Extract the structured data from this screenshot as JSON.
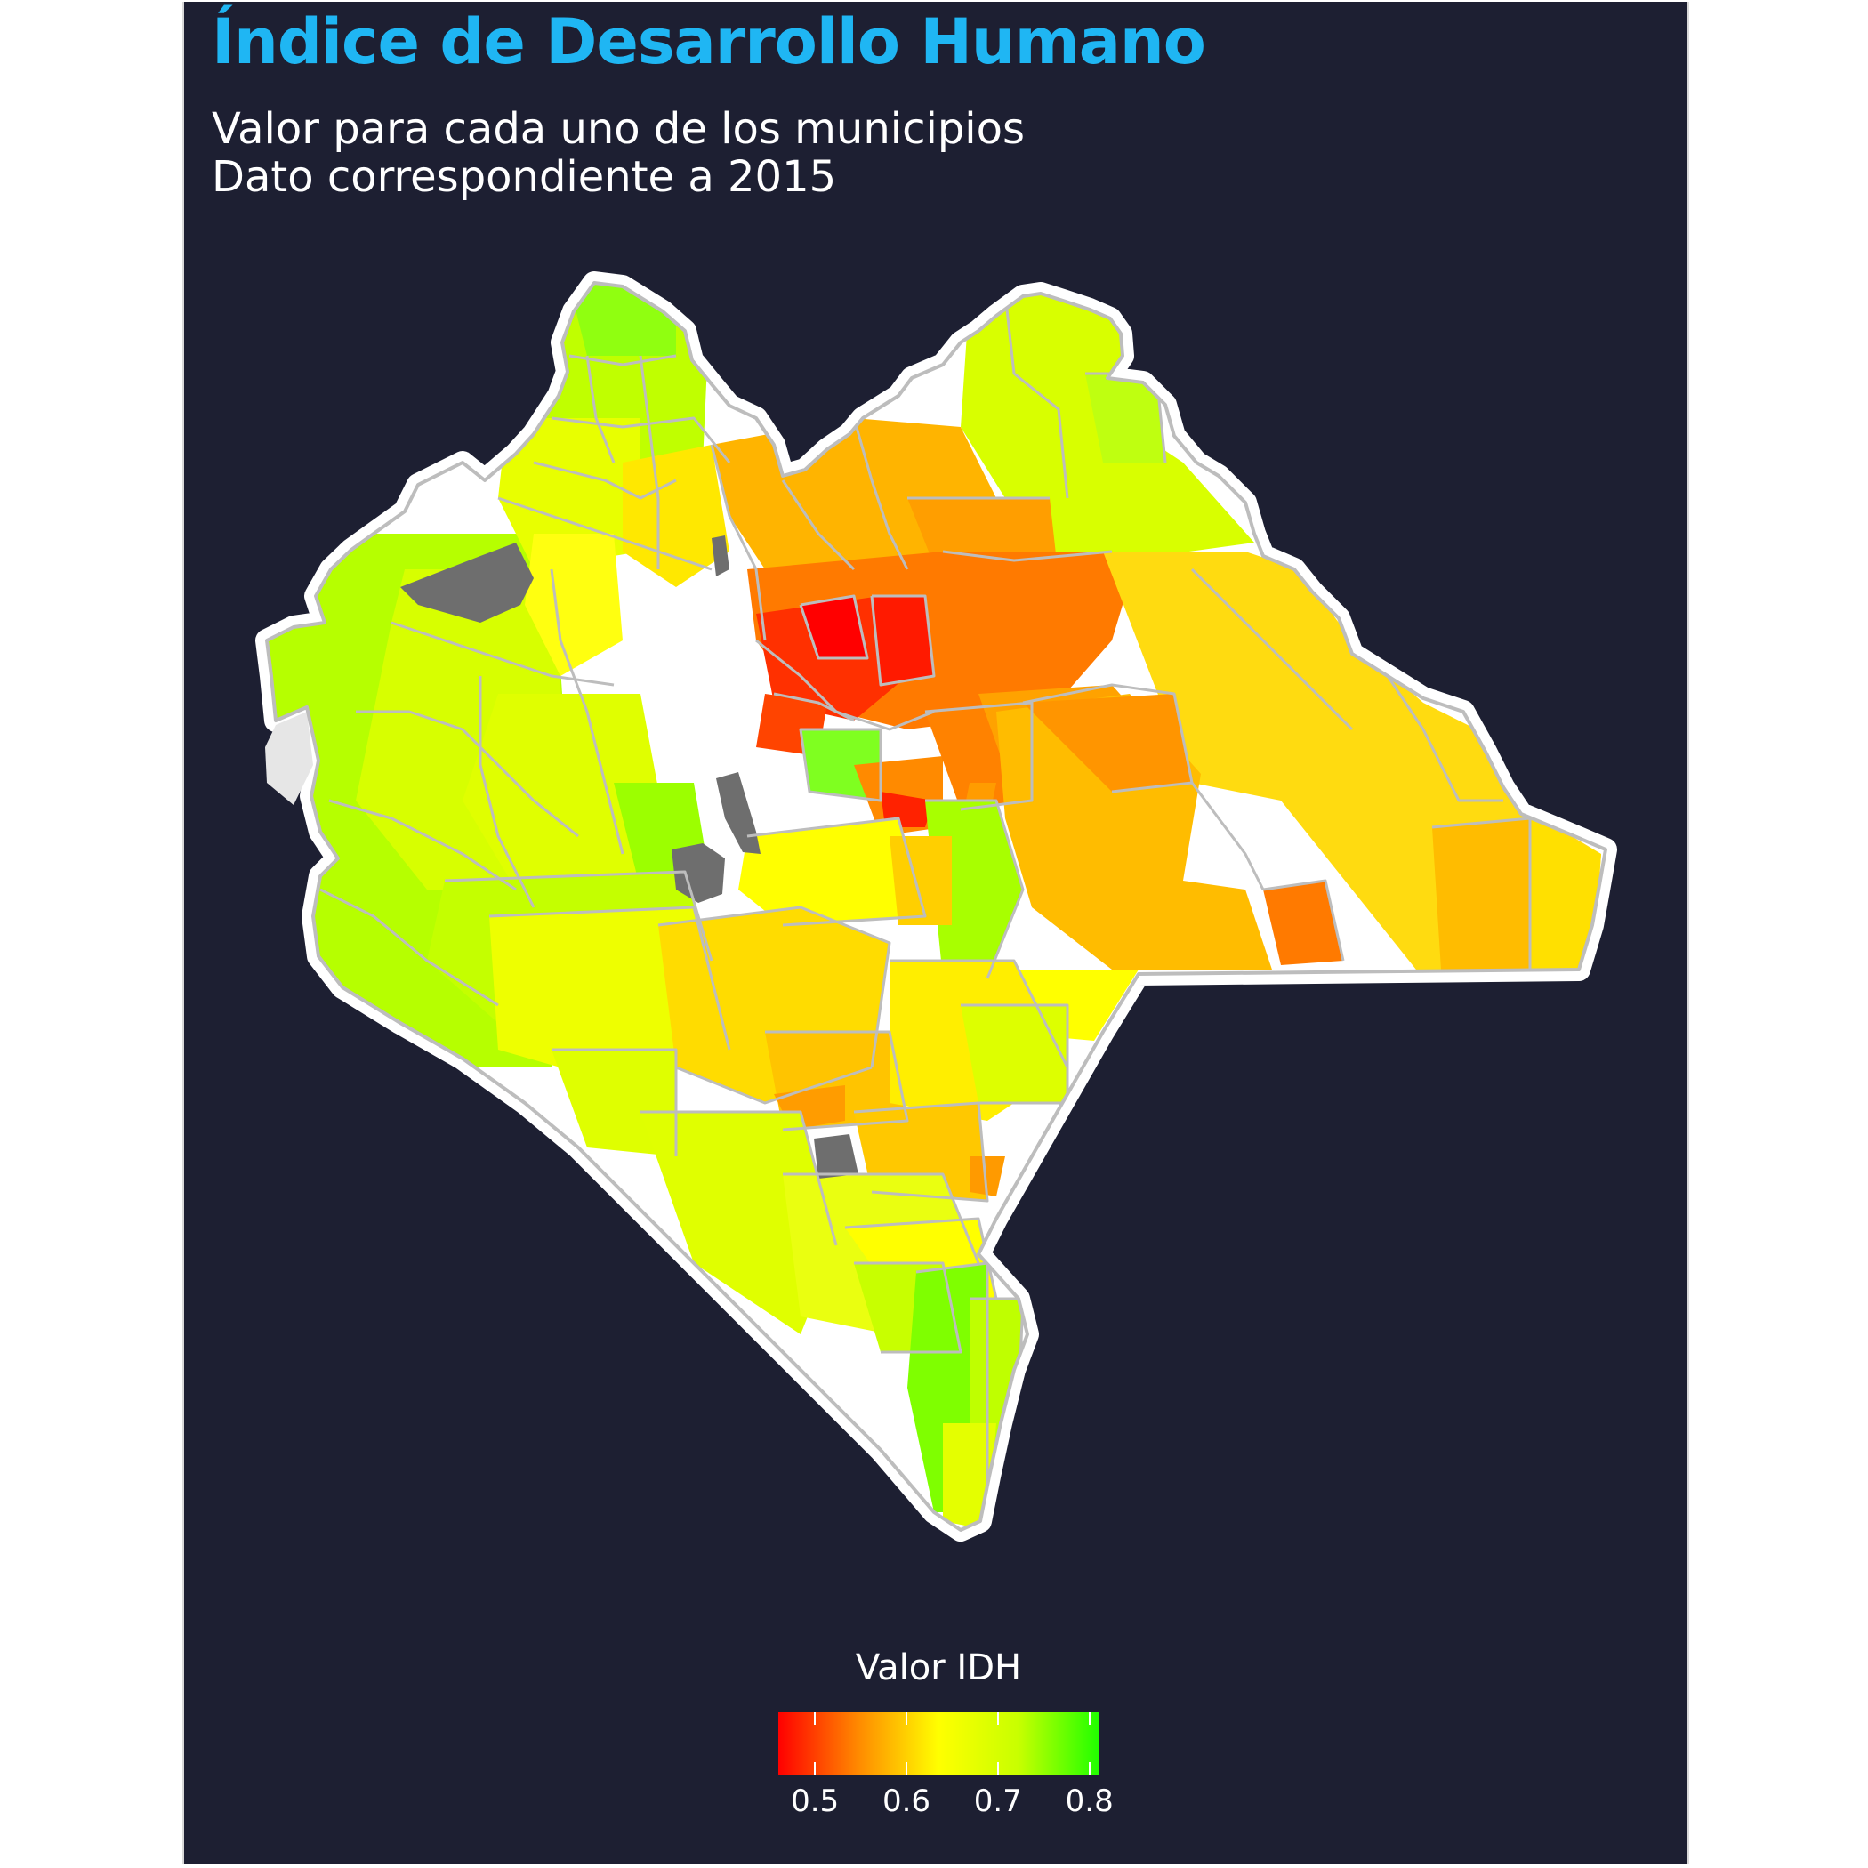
{
  "title": "Índice de Desarrollo Humano",
  "subtitle_line1": "Valor para cada uno de los municipios",
  "subtitle_line2": "Dato correspondiente a 2015",
  "legend": {
    "title": "Valor IDH",
    "min": 0.46,
    "max": 0.81,
    "ticks": [
      "0.5",
      "0.6",
      "0.7",
      "0.8"
    ],
    "tick_values": [
      0.5,
      0.6,
      0.7,
      0.8
    ],
    "colors": [
      "#ff0000",
      "#ff8a00",
      "#ffff00",
      "#c8ff00",
      "#22ff00"
    ]
  },
  "colors": {
    "background": "#1d1f32",
    "title": "#1fb6f3",
    "missing": "#6e6e6e",
    "border": "#bdbdbd",
    "outline": "#ffffff"
  },
  "map_data": {
    "region": "Chiapas",
    "variable": "IDH",
    "year": "2015",
    "missing_data_color": "#6e6e6e"
  }
}
